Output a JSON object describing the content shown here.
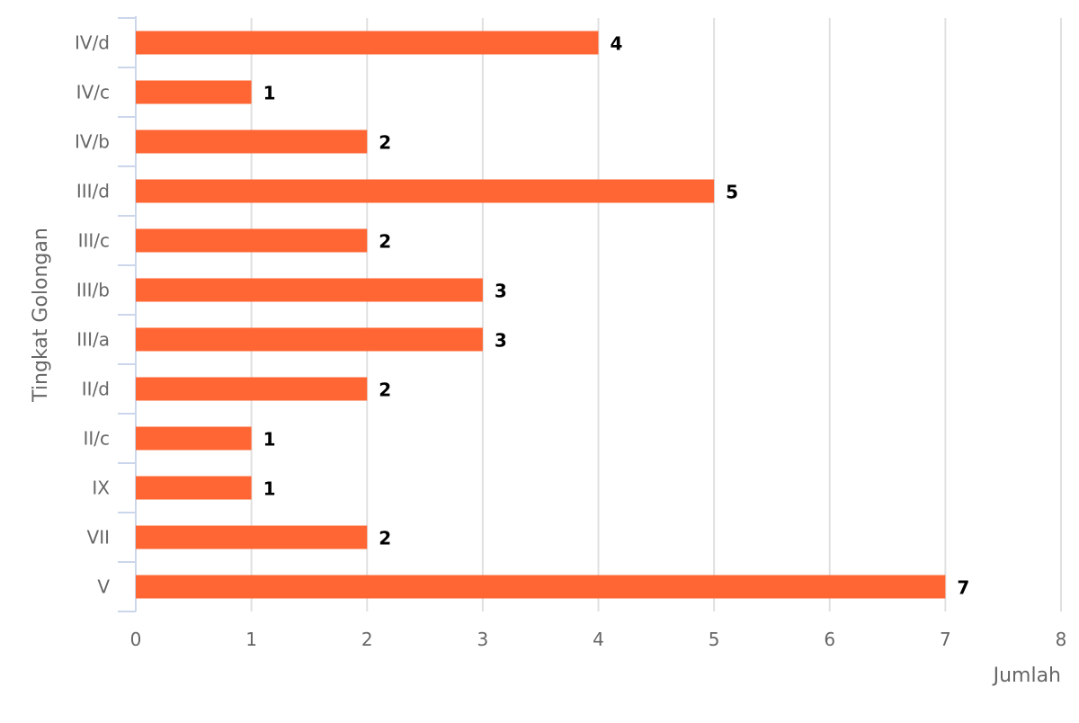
{
  "chart_data": {
    "type": "bar",
    "orientation": "horizontal",
    "categories": [
      "IV/d",
      "IV/c",
      "IV/b",
      "III/d",
      "III/c",
      "III/b",
      "III/a",
      "II/d",
      "II/c",
      "IX",
      "VII",
      "V"
    ],
    "values": [
      4,
      1,
      2,
      5,
      2,
      3,
      3,
      2,
      1,
      1,
      2,
      7
    ],
    "xlabel": "Jumlah",
    "ylabel": "Tingkat Golongan",
    "xlim": [
      0,
      8
    ],
    "x_ticks": [
      "0",
      "1",
      "2",
      "3",
      "4",
      "5",
      "6",
      "7",
      "8"
    ],
    "grid": true,
    "data_labels": true,
    "bar_color": "#ff6633"
  }
}
